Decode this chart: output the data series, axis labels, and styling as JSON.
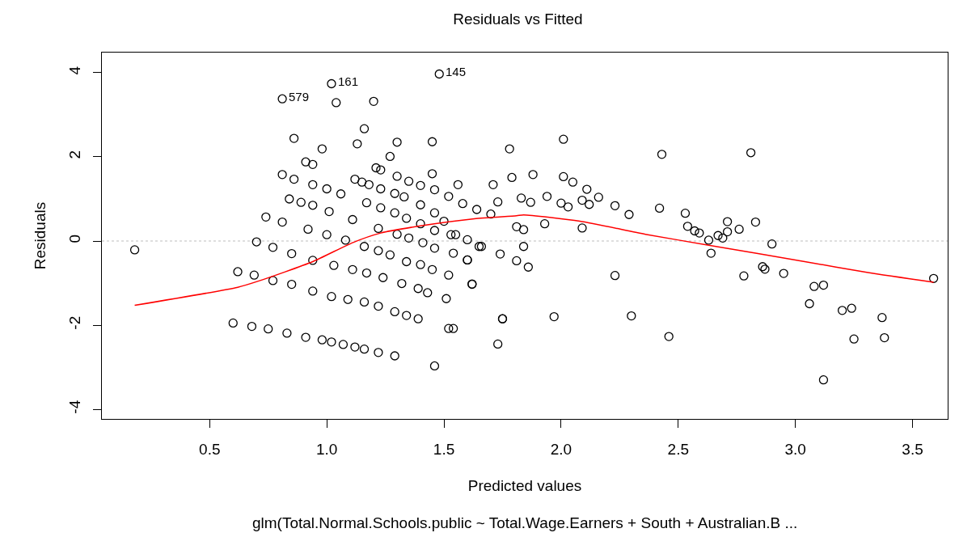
{
  "chart_data": {
    "type": "scatter",
    "title": "Residuals vs Fitted",
    "subtitle": "glm(Total.Normal.Schools.public ~ Total.Wage.Earners + South + Australian.B ...",
    "xlabel": "Predicted values",
    "ylabel": "Residuals",
    "xlim": [
      0.04,
      3.65
    ],
    "ylim": [
      -4.23,
      4.48
    ],
    "xticks": [
      0.5,
      {
        "value": 1,
        "label": "1.0"
      },
      1.5,
      {
        "value": 2,
        "label": "2.0"
      },
      2.5,
      {
        "value": 3,
        "label": "3.0"
      },
      3.5
    ],
    "yticks": [
      -4,
      -2,
      0,
      2,
      4
    ],
    "grid": false,
    "marker": "circle",
    "ref_lines": [
      {
        "axis": "y",
        "value": 0,
        "color": "#bebebe",
        "line_style": "dotted"
      }
    ],
    "annotations": [
      {
        "text": "579",
        "x": 0.81,
        "y": 3.38
      },
      {
        "text": "161",
        "x": 1.02,
        "y": 3.74
      },
      {
        "text": "145",
        "x": 1.48,
        "y": 3.97
      }
    ],
    "series": [
      {
        "color": "#000000",
        "x": [
          0.18,
          0.81,
          1.02,
          1.48,
          1.04,
          1.2,
          1.16,
          0.86,
          0.98,
          1.13,
          1.3,
          1.45,
          1.27,
          0.81,
          1.45,
          0.91,
          0.94,
          1.21,
          1.23,
          1.12,
          1.15,
          1.18,
          1.56,
          1.71,
          1.73,
          1.3,
          1.35,
          1.4,
          1.46,
          1.52,
          1.58,
          1.64,
          1.7,
          1.23,
          1.29,
          1.33,
          1.4,
          1.46,
          1.5,
          1.55,
          1.6,
          0.86,
          0.94,
          1.0,
          1.06,
          1.17,
          1.23,
          1.29,
          1.34,
          1.4,
          1.46,
          1.53,
          1.65,
          1.6,
          1.52,
          1.62,
          1.51,
          1.75,
          1.73,
          1.46,
          1.52,
          0.84,
          0.89,
          0.94,
          1.01,
          1.11,
          1.22,
          1.3,
          1.35,
          1.41,
          1.46,
          1.54,
          0.74,
          0.81,
          0.92,
          1.0,
          1.08,
          1.16,
          1.22,
          1.27,
          1.34,
          1.4,
          1.45,
          0.7,
          0.77,
          0.85,
          0.94,
          1.03,
          1.11,
          1.17,
          1.24,
          1.32,
          1.39,
          1.43,
          0.62,
          0.69,
          0.77,
          0.85,
          0.94,
          1.02,
          1.09,
          1.16,
          1.22,
          1.29,
          1.34,
          1.39,
          0.6,
          0.68,
          0.75,
          0.83,
          0.91,
          0.98,
          1.02,
          1.07,
          1.12,
          1.16,
          1.22,
          1.29,
          1.78,
          2.01,
          2.43,
          2.81,
          1.79,
          1.88,
          2.01,
          2.05,
          2.11,
          2.16,
          2.23,
          2.29,
          2.42,
          2.53,
          2.54,
          2.57,
          2.59,
          2.63,
          2.64,
          2.67,
          2.69,
          2.71,
          2.71,
          2.76,
          2.83,
          2.9,
          2.78,
          2.86,
          2.87,
          2.95,
          3.08,
          3.12,
          3.06,
          3.2,
          3.24,
          3.37,
          3.25,
          3.38,
          3.12,
          3.59,
          1.93,
          2.09,
          1.81,
          1.84,
          1.84,
          1.81,
          1.86,
          1.74,
          1.66,
          1.6,
          1.62,
          1.75,
          1.97,
          2.23,
          2.3,
          2.46,
          1.83,
          1.87,
          1.94,
          2.0,
          2.03,
          2.09,
          2.12,
          1.54
        ],
        "values": [
          -0.21,
          3.38,
          3.74,
          3.97,
          3.29,
          3.32,
          2.67,
          2.44,
          2.19,
          2.31,
          2.35,
          2.36,
          2.01,
          1.58,
          1.6,
          1.88,
          1.82,
          1.74,
          1.69,
          1.47,
          1.4,
          1.34,
          1.34,
          1.34,
          0.93,
          1.54,
          1.42,
          1.32,
          1.22,
          1.06,
          0.89,
          0.75,
          0.64,
          1.24,
          1.13,
          1.05,
          0.86,
          0.67,
          0.47,
          0.15,
          0.03,
          1.47,
          1.34,
          1.24,
          1.12,
          0.91,
          0.79,
          0.67,
          0.54,
          0.41,
          0.25,
          0.15,
          -0.13,
          -0.45,
          -0.81,
          -1.02,
          -1.37,
          -1.85,
          -2.45,
          -2.97,
          -2.08,
          1.0,
          0.92,
          0.85,
          0.7,
          0.51,
          0.3,
          0.16,
          0.07,
          -0.04,
          -0.17,
          -0.29,
          0.57,
          0.45,
          0.28,
          0.15,
          0.02,
          -0.13,
          -0.23,
          -0.33,
          -0.49,
          -0.56,
          -0.68,
          -0.02,
          -0.15,
          -0.3,
          -0.46,
          -0.58,
          -0.68,
          -0.76,
          -0.87,
          -1.01,
          -1.13,
          -1.23,
          -0.73,
          -0.81,
          -0.94,
          -1.03,
          -1.19,
          -1.32,
          -1.39,
          -1.45,
          -1.55,
          -1.68,
          -1.77,
          -1.85,
          -1.95,
          -2.03,
          -2.09,
          -2.19,
          -2.29,
          -2.35,
          -2.4,
          -2.46,
          -2.52,
          -2.57,
          -2.65,
          -2.73,
          2.19,
          2.42,
          2.06,
          2.1,
          1.51,
          1.58,
          1.53,
          1.4,
          1.23,
          1.04,
          0.84,
          0.63,
          0.78,
          0.66,
          0.35,
          0.24,
          0.19,
          0.02,
          -0.29,
          0.13,
          0.07,
          0.46,
          0.22,
          0.28,
          0.45,
          -0.07,
          -0.83,
          -0.61,
          -0.67,
          -0.77,
          -1.08,
          -1.05,
          -1.49,
          -1.65,
          -1.6,
          -1.82,
          -2.33,
          -2.3,
          -3.3,
          -0.89,
          0.41,
          0.31,
          0.34,
          0.27,
          -0.13,
          -0.47,
          -0.62,
          -0.31,
          -0.13,
          -0.45,
          -1.03,
          -1.85,
          -1.8,
          -0.82,
          -1.78,
          -2.27,
          1.02,
          0.92,
          1.06,
          0.9,
          0.81,
          0.97,
          0.87,
          -2.08
        ]
      },
      {
        "type": "line",
        "color": "#ff0000",
        "marker": "none",
        "line_style": "solid",
        "x": [
          0.18,
          0.62,
          0.71,
          0.94,
          1.11,
          1.23,
          1.4,
          1.63,
          1.81,
          1.84,
          2.08,
          2.36,
          2.63,
          3.04,
          3.31,
          3.59
        ],
        "values": [
          -1.53,
          -1.1,
          -0.95,
          -0.49,
          -0.04,
          0.19,
          0.36,
          0.53,
          0.6,
          0.62,
          0.47,
          0.16,
          -0.1,
          -0.49,
          -0.75,
          -0.98
        ]
      }
    ]
  }
}
